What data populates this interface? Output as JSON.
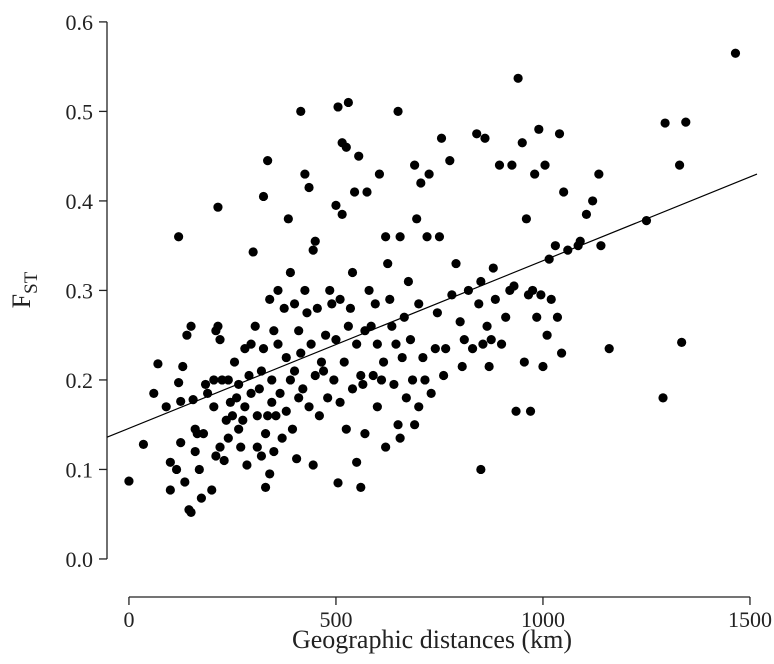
{
  "chart_data": {
    "type": "scatter",
    "xlabel": "Geographic distances (km)",
    "ylabel": "F",
    "ylabel_subscript": "ST",
    "xlim": [
      -53,
      1517
    ],
    "ylim": [
      -0.0425,
      0.62
    ],
    "xticks": [
      0,
      500,
      1000,
      1500
    ],
    "yticks": [
      {
        "value": 0,
        "label": "0.0"
      },
      0.1,
      0.2,
      0.3,
      0.4,
      0.5,
      0.6
    ],
    "color": "#000000",
    "fit_line": {
      "x": [
        -53,
        1517
      ],
      "y": [
        0.136,
        0.43
      ]
    },
    "x": [
      0,
      35,
      60,
      70,
      90,
      100,
      100,
      115,
      120,
      120,
      125,
      125,
      130,
      135,
      140,
      145,
      150,
      150,
      155,
      160,
      160,
      165,
      170,
      175,
      180,
      185,
      190,
      200,
      205,
      205,
      210,
      210,
      215,
      215,
      220,
      220,
      225,
      230,
      235,
      240,
      240,
      245,
      250,
      255,
      260,
      265,
      265,
      270,
      275,
      280,
      280,
      285,
      290,
      295,
      295,
      300,
      305,
      310,
      310,
      315,
      320,
      320,
      325,
      325,
      330,
      330,
      335,
      335,
      340,
      340,
      345,
      345,
      350,
      350,
      355,
      360,
      360,
      365,
      370,
      375,
      380,
      380,
      385,
      390,
      390,
      395,
      400,
      400,
      405,
      410,
      410,
      415,
      415,
      420,
      425,
      425,
      430,
      435,
      435,
      440,
      445,
      445,
      450,
      450,
      455,
      460,
      465,
      470,
      475,
      480,
      485,
      490,
      495,
      500,
      500,
      505,
      505,
      510,
      510,
      515,
      515,
      520,
      525,
      525,
      530,
      530,
      535,
      540,
      540,
      545,
      550,
      550,
      555,
      560,
      560,
      565,
      570,
      570,
      575,
      580,
      585,
      590,
      595,
      600,
      600,
      605,
      610,
      615,
      620,
      620,
      625,
      630,
      635,
      640,
      645,
      650,
      650,
      655,
      655,
      660,
      665,
      670,
      675,
      680,
      685,
      690,
      690,
      695,
      700,
      700,
      705,
      710,
      715,
      720,
      725,
      730,
      740,
      745,
      750,
      755,
      760,
      765,
      775,
      780,
      790,
      800,
      805,
      810,
      820,
      830,
      840,
      845,
      850,
      850,
      855,
      860,
      865,
      870,
      875,
      880,
      885,
      895,
      900,
      910,
      920,
      925,
      930,
      935,
      940,
      950,
      955,
      960,
      965,
      970,
      975,
      980,
      985,
      990,
      995,
      1000,
      1005,
      1010,
      1015,
      1020,
      1030,
      1035,
      1040,
      1045,
      1050,
      1060,
      1085,
      1090,
      1105,
      1120,
      1135,
      1140,
      1160,
      1250,
      1290,
      1295,
      1330,
      1335,
      1345,
      1465
    ],
    "values": [
      0.087,
      0.128,
      0.185,
      0.218,
      0.17,
      0.108,
      0.077,
      0.1,
      0.36,
      0.197,
      0.13,
      0.176,
      0.215,
      0.086,
      0.25,
      0.055,
      0.052,
      0.26,
      0.178,
      0.145,
      0.12,
      0.14,
      0.1,
      0.068,
      0.14,
      0.195,
      0.185,
      0.077,
      0.2,
      0.17,
      0.115,
      0.255,
      0.26,
      0.393,
      0.245,
      0.125,
      0.2,
      0.11,
      0.155,
      0.135,
      0.2,
      0.175,
      0.16,
      0.22,
      0.18,
      0.145,
      0.195,
      0.125,
      0.155,
      0.17,
      0.235,
      0.105,
      0.205,
      0.24,
      0.185,
      0.343,
      0.26,
      0.16,
      0.125,
      0.19,
      0.115,
      0.21,
      0.405,
      0.235,
      0.14,
      0.08,
      0.445,
      0.16,
      0.29,
      0.095,
      0.175,
      0.2,
      0.12,
      0.255,
      0.16,
      0.3,
      0.24,
      0.185,
      0.135,
      0.28,
      0.225,
      0.165,
      0.38,
      0.32,
      0.2,
      0.145,
      0.285,
      0.21,
      0.112,
      0.255,
      0.18,
      0.5,
      0.23,
      0.19,
      0.43,
      0.3,
      0.275,
      0.415,
      0.17,
      0.24,
      0.345,
      0.105,
      0.355,
      0.205,
      0.28,
      0.16,
      0.22,
      0.21,
      0.25,
      0.18,
      0.3,
      0.285,
      0.2,
      0.395,
      0.245,
      0.085,
      0.505,
      0.175,
      0.29,
      0.465,
      0.385,
      0.22,
      0.46,
      0.145,
      0.51,
      0.26,
      0.28,
      0.19,
      0.32,
      0.41,
      0.24,
      0.108,
      0.45,
      0.205,
      0.08,
      0.195,
      0.255,
      0.14,
      0.41,
      0.3,
      0.26,
      0.205,
      0.285,
      0.24,
      0.17,
      0.43,
      0.2,
      0.22,
      0.36,
      0.125,
      0.33,
      0.29,
      0.26,
      0.195,
      0.24,
      0.5,
      0.15,
      0.36,
      0.135,
      0.225,
      0.27,
      0.18,
      0.31,
      0.245,
      0.2,
      0.44,
      0.15,
      0.38,
      0.285,
      0.17,
      0.42,
      0.225,
      0.2,
      0.36,
      0.43,
      0.185,
      0.235,
      0.275,
      0.36,
      0.47,
      0.205,
      0.235,
      0.445,
      0.295,
      0.33,
      0.265,
      0.215,
      0.245,
      0.3,
      0.235,
      0.475,
      0.285,
      0.1,
      0.31,
      0.24,
      0.47,
      0.26,
      0.215,
      0.245,
      0.325,
      0.29,
      0.44,
      0.24,
      0.27,
      0.3,
      0.44,
      0.305,
      0.165,
      0.537,
      0.465,
      0.22,
      0.38,
      0.295,
      0.165,
      0.3,
      0.43,
      0.27,
      0.48,
      0.295,
      0.215,
      0.44,
      0.25,
      0.335,
      0.29,
      0.35,
      0.27,
      0.475,
      0.23,
      0.41,
      0.345,
      0.35,
      0.355,
      0.385,
      0.4,
      0.43,
      0.35,
      0.235,
      0.378,
      0.18,
      0.487,
      0.44,
      0.242,
      0.488,
      0.565
    ]
  }
}
